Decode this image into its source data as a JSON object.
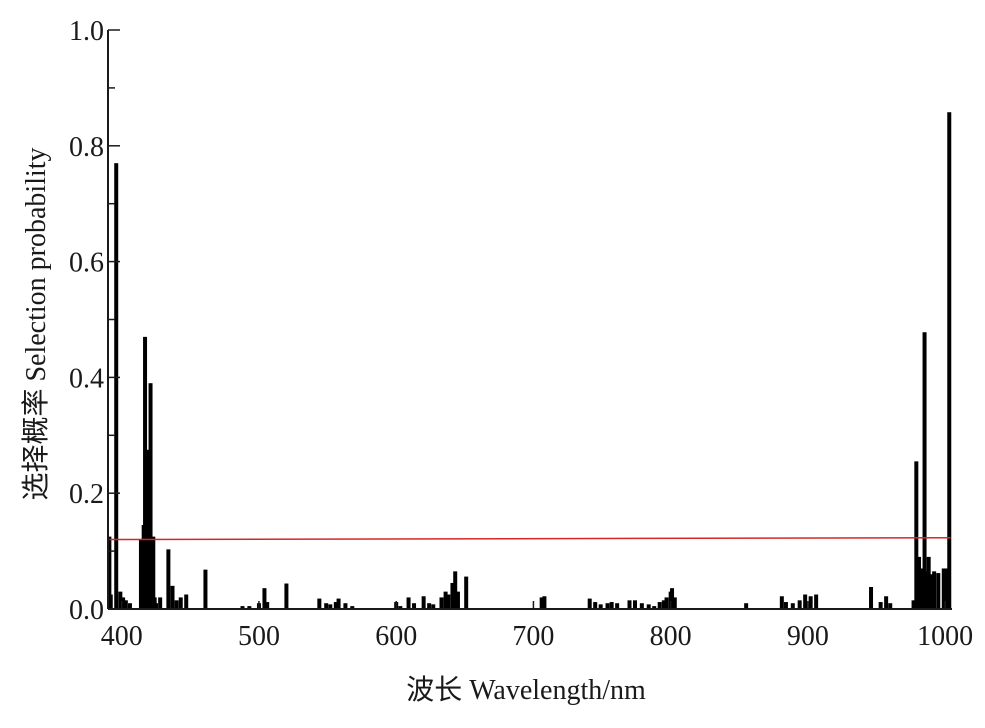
{
  "chart_data": {
    "type": "bar",
    "xlabel": "波长 Wavelength/nm",
    "ylabel": "选择概率 Selection probability",
    "xlim": [
      390,
      1005
    ],
    "ylim": [
      0,
      1.0
    ],
    "x_ticks": [
      "400",
      "500",
      "600",
      "700",
      "800",
      "900",
      "1000"
    ],
    "y_ticks": [
      "0.0",
      "0.2",
      "0.4",
      "0.6",
      "0.8",
      "1.0"
    ],
    "grid": false,
    "legend": "none",
    "threshold_line": {
      "x": [
        391,
        1004
      ],
      "y": [
        0.12,
        0.123
      ],
      "color": "#d62728"
    },
    "bar_color": "#000000",
    "x": [
      391,
      392,
      396,
      399,
      401,
      403,
      406,
      414,
      416,
      417,
      418,
      419,
      420,
      421,
      422,
      423,
      424,
      425,
      428,
      434,
      437,
      440,
      443,
      447,
      461,
      488,
      493,
      500,
      504,
      506,
      520,
      544,
      549,
      552,
      556,
      558,
      563,
      568,
      600,
      603,
      609,
      613,
      620,
      624,
      627,
      633,
      636,
      638,
      641,
      643,
      645,
      651,
      706,
      708,
      741,
      745,
      749,
      754,
      757,
      761,
      770,
      774,
      779,
      784,
      788,
      792,
      795,
      797,
      800,
      801,
      803,
      855,
      881,
      884,
      889,
      894,
      898,
      902,
      906,
      946,
      953,
      957,
      960,
      977,
      979,
      981,
      983,
      985,
      986,
      988,
      990,
      992,
      995,
      999,
      1001,
      1003
    ],
    "values": [
      0.125,
      0.025,
      0.77,
      0.03,
      0.02,
      0.015,
      0.01,
      0.12,
      0.145,
      0.47,
      0.14,
      0.275,
      0.12,
      0.39,
      0.12,
      0.125,
      0.02,
      0.01,
      0.02,
      0.103,
      0.04,
      0.015,
      0.02,
      0.025,
      0.068,
      0.005,
      0.005,
      0.01,
      0.036,
      0.012,
      0.044,
      0.018,
      0.01,
      0.008,
      0.012,
      0.018,
      0.01,
      0.005,
      0.012,
      0.005,
      0.02,
      0.01,
      0.022,
      0.01,
      0.008,
      0.02,
      0.03,
      0.025,
      0.045,
      0.065,
      0.03,
      0.056,
      0.02,
      0.022,
      0.018,
      0.012,
      0.008,
      0.01,
      0.012,
      0.01,
      0.015,
      0.015,
      0.01,
      0.008,
      0.005,
      0.012,
      0.015,
      0.02,
      0.03,
      0.036,
      0.02,
      0.01,
      0.022,
      0.012,
      0.01,
      0.015,
      0.025,
      0.022,
      0.025,
      0.038,
      0.012,
      0.022,
      0.01,
      0.015,
      0.255,
      0.09,
      0.07,
      0.478,
      0.065,
      0.09,
      0.06,
      0.065,
      0.062,
      0.07,
      0.07,
      0.858
    ]
  }
}
